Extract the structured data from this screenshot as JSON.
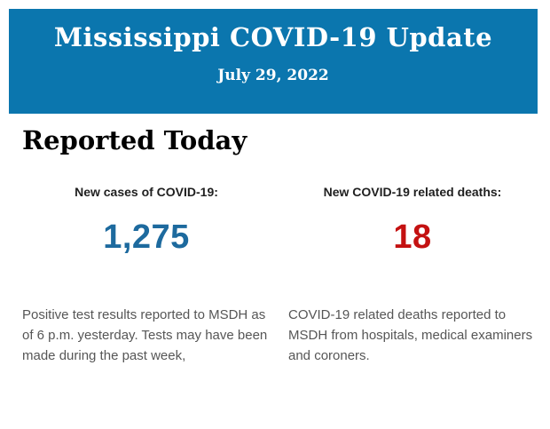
{
  "banner": {
    "title": "Mississippi COVID-19 Update",
    "date": "July 29, 2022",
    "bg_color": "#0b76ae",
    "text_color": "#ffffff"
  },
  "section": {
    "heading": "Reported Today"
  },
  "stats": [
    {
      "label": "New cases of COVID-19:",
      "value": "1,275",
      "value_color": "#1d6a9e",
      "description": "Positive test results reported to MSDH as of 6 p.m. yesterday. Tests may have been made during the past week,"
    },
    {
      "label": "New COVID-19 related deaths:",
      "value": "18",
      "value_color": "#c41111",
      "description": "COVID-19 related deaths reported to MSDH from hospitals, medical examiners and coroners."
    }
  ]
}
